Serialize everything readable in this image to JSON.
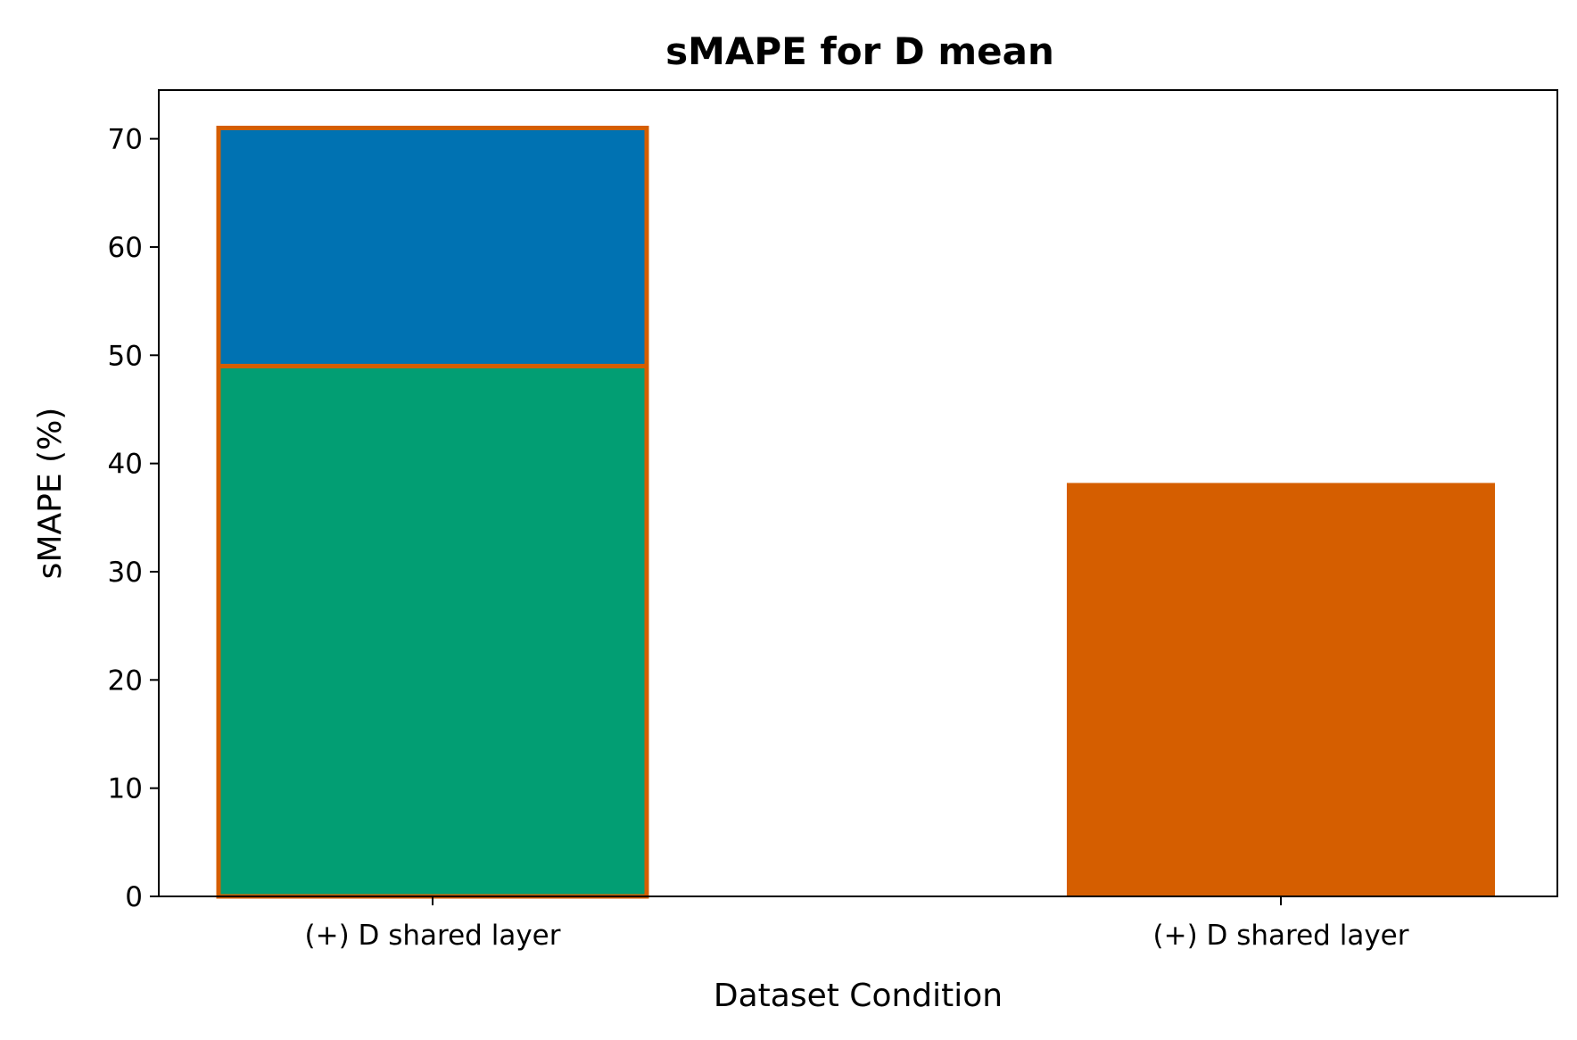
{
  "chart_data": {
    "type": "bar",
    "title": "sMAPE for D mean",
    "xlabel": "Dataset Condition",
    "ylabel": "sMAPE (%)",
    "ylim": [
      0,
      74.5
    ],
    "yticks": [
      0,
      10,
      20,
      30,
      40,
      50,
      60,
      70
    ],
    "categories": [
      "(+) D shared layer",
      "(+) D shared layer"
    ],
    "grid": false,
    "bars": [
      {
        "category_index": 0,
        "stacked": true,
        "segments": [
          {
            "value": 49,
            "color": "#029E73"
          },
          {
            "value": 22,
            "color": "#0072B2"
          }
        ],
        "edge_color": "#D55E00"
      },
      {
        "category_index": 1,
        "stacked": false,
        "segments": [
          {
            "value": 38.2,
            "color": "#D55E00"
          }
        ],
        "edge_color": null
      }
    ]
  }
}
